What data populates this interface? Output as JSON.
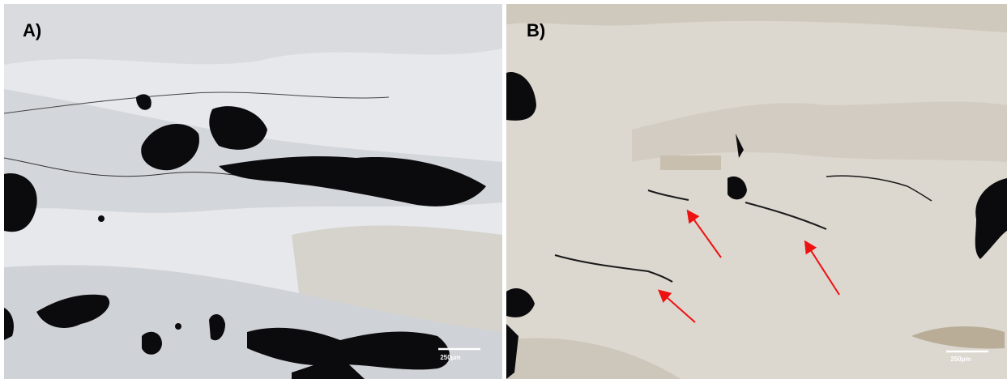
{
  "panels": [
    {
      "label": "A)",
      "scale_bar": "250μm"
    },
    {
      "label": "B)",
      "scale_bar": "250μm"
    }
  ]
}
